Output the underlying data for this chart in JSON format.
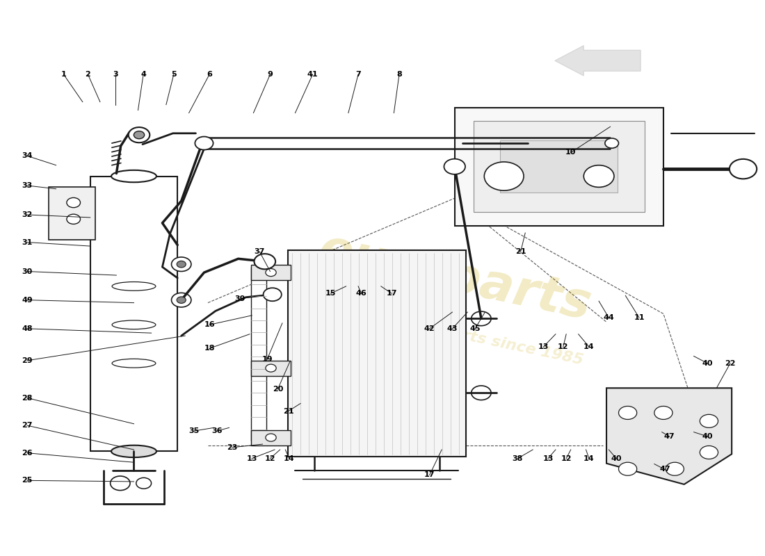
{
  "background_color": "#ffffff",
  "black": "#1a1a1a",
  "gray": "#888888",
  "watermark_color": "#c8a800",
  "watermark_alpha": 0.18
}
